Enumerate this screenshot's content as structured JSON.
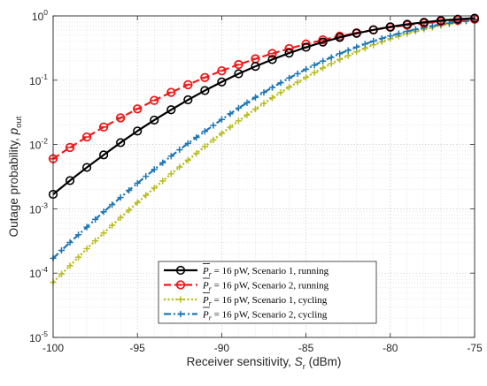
{
  "chart_data": {
    "type": "line",
    "xlabel": "Receiver sensitivity, S_r (dBm)",
    "xlabel_parts": {
      "pre": "Receiver sensitivity, ",
      "sym": "S",
      "sub": "r",
      "post": " (dBm)"
    },
    "ylabel": "Outage probability, p_out",
    "ylabel_parts": {
      "pre": "Outage probability, ",
      "sym": "p",
      "sub": "out"
    },
    "xlim": [
      -100,
      -75
    ],
    "ylim": [
      1e-05,
      1
    ],
    "yscale": "log",
    "grid": true,
    "minor_grid": true,
    "legend_position": "bottom-center",
    "x_ticks": [
      -100,
      -95,
      -90,
      -85,
      -80,
      -75
    ],
    "x_tick_labels": [
      "-100",
      "-95",
      "-90",
      "-85",
      "-80",
      "-75"
    ],
    "y_ticks": [
      1e-05,
      0.0001,
      0.001,
      0.01,
      0.1,
      1
    ],
    "y_tick_labels": [
      {
        "base": "10",
        "exp": "-5"
      },
      {
        "base": "10",
        "exp": "-4"
      },
      {
        "base": "10",
        "exp": "-3"
      },
      {
        "base": "10",
        "exp": "-2"
      },
      {
        "base": "10",
        "exp": "-1"
      },
      {
        "base": "10",
        "exp": "0"
      }
    ],
    "x": [
      -100,
      -99,
      -98,
      -97,
      -96,
      -95,
      -94,
      -93,
      -92,
      -91,
      -90,
      -89,
      -88,
      -87,
      -86,
      -85,
      -84,
      -83,
      -82,
      -81,
      -80,
      -79,
      -78,
      -77,
      -76,
      -75
    ],
    "series": [
      {
        "name": "P_r = 16 pW, Scenario 1, running",
        "legend_parts": {
          "sym": "P",
          "sub": "r",
          "rest": " = 16 pW, Scenario 1, running"
        },
        "color": "#000000",
        "dash": "solid",
        "marker": "circle",
        "marker_every": 1,
        "values": [
          0.00168,
          0.00275,
          0.0044,
          0.0069,
          0.0107,
          0.0162,
          0.024,
          0.0347,
          0.0495,
          0.069,
          0.094,
          0.126,
          0.164,
          0.21,
          0.264,
          0.325,
          0.392,
          0.462,
          0.535,
          0.607,
          0.676,
          0.74,
          0.797,
          0.847,
          0.888,
          0.92
        ]
      },
      {
        "name": "P_r = 16 pW, Scenario 2, running",
        "legend_parts": {
          "sym": "P",
          "sub": "r",
          "rest": " = 16 pW, Scenario 2, running"
        },
        "color": "#ee1c1c",
        "dash": "dashed",
        "marker": "circle-cross",
        "marker_every": 1,
        "values": [
          0.006,
          0.009,
          0.0131,
          0.0187,
          0.026,
          0.0358,
          0.0485,
          0.0647,
          0.085,
          0.11,
          0.14,
          0.175,
          0.215,
          0.26,
          0.31,
          0.365,
          0.423,
          0.483,
          0.545,
          0.606,
          0.665,
          0.72,
          0.771,
          0.816,
          0.855,
          0.888
        ]
      },
      {
        "name": "P_r = 16 pW, Scenario 1, cycling",
        "legend_parts": {
          "sym": "P",
          "sub": "r",
          "rest": " = 16 pW, Scenario 1, cycling"
        },
        "color": "#b8bd1f",
        "dash": "dotted",
        "marker": "plus",
        "marker_every": 0.5,
        "values": [
          7.2e-05,
          0.00013,
          0.00024,
          0.00042,
          0.00073,
          0.00125,
          0.0021,
          0.0035,
          0.0057,
          0.0093,
          0.0149,
          0.0233,
          0.0356,
          0.0532,
          0.078,
          0.111,
          0.155,
          0.21,
          0.277,
          0.355,
          0.44,
          0.53,
          0.62,
          0.71,
          0.79,
          0.86
        ]
      },
      {
        "name": "P_r = 16 pW, Scenario 2, cycling",
        "legend_parts": {
          "sym": "P",
          "sub": "r",
          "rest": " = 16 pW, Scenario 2, cycling"
        },
        "color": "#1f77b4",
        "dash": "dashdot",
        "marker": "plus",
        "marker_every": 0.5,
        "values": [
          0.00017,
          0.0003,
          0.00052,
          0.0009,
          0.0015,
          0.0025,
          0.0041,
          0.0066,
          0.0104,
          0.016,
          0.0245,
          0.0368,
          0.054,
          0.077,
          0.108,
          0.148,
          0.198,
          0.258,
          0.328,
          0.406,
          0.489,
          0.575,
          0.66,
          0.74,
          0.81,
          0.87
        ]
      }
    ]
  }
}
